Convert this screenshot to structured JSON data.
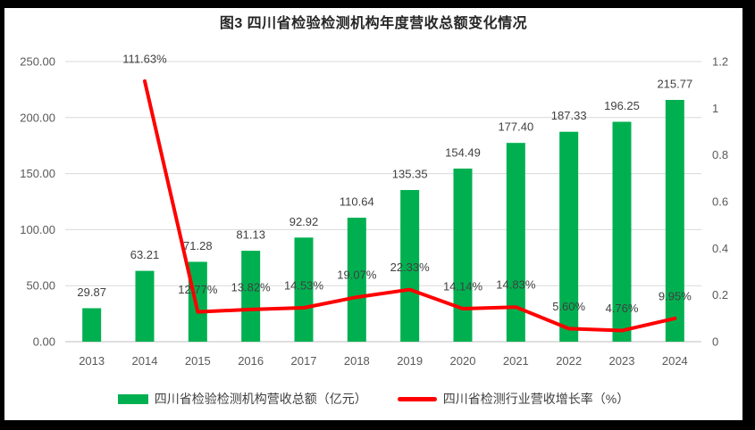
{
  "chart_data": {
    "type": "combo-bar-line",
    "title": "图3  四川省检验检测机构年度营收总额变化情况",
    "categories": [
      "2013",
      "2014",
      "2015",
      "2016",
      "2017",
      "2018",
      "2019",
      "2020",
      "2021",
      "2022",
      "2023",
      "2024"
    ],
    "series": [
      {
        "name": "四川省检验检测机构营收总额（亿元）",
        "type": "bar",
        "axis": "left",
        "color": "#00B050",
        "values": [
          29.87,
          63.21,
          71.28,
          81.13,
          92.92,
          110.64,
          135.35,
          154.49,
          177.4,
          187.33,
          196.25,
          215.77
        ],
        "value_labels": [
          "29.87",
          "63.21",
          "71.28",
          "81.13",
          "92.92",
          "110.64",
          "135.35",
          "154.49",
          "177.40",
          "187.33",
          "196.25",
          "215.77"
        ]
      },
      {
        "name": "四川省检测行业营收增长率（%）",
        "type": "line",
        "axis": "right",
        "color": "#FF0000",
        "values": [
          null,
          1.1163,
          0.1277,
          0.1382,
          0.1453,
          0.1907,
          0.2233,
          0.1414,
          0.1483,
          0.056,
          0.0476,
          0.0995
        ],
        "value_labels": [
          null,
          "111.63%",
          "12.77%",
          "13.82%",
          "14.53%",
          "19.07%",
          "22.33%",
          "14.14%",
          "14.83%",
          "5.60%",
          "4.76%",
          "9.95%"
        ]
      }
    ],
    "left_axis": {
      "min": 0,
      "max": 250,
      "tick_values": [
        250,
        200,
        150,
        100,
        50,
        0
      ],
      "tick_labels": [
        "250.00",
        "200.00",
        "150.00",
        "100.00",
        "50.00",
        "0.00"
      ]
    },
    "right_axis": {
      "min": 0,
      "max": 1.2,
      "tick_values": [
        1.2,
        1,
        0.8,
        0.6,
        0.4,
        0.2,
        0
      ],
      "tick_labels": [
        "1.2",
        "1",
        "0.8",
        "0.6",
        "0.4",
        "0.2",
        "0"
      ]
    },
    "grid": true,
    "legend_position": "bottom",
    "style": {
      "grid_color": "#D9D9D9",
      "axis_line_color": "#BFBFBF",
      "background": "#FFFFFF",
      "frame_color": "#000000"
    }
  }
}
